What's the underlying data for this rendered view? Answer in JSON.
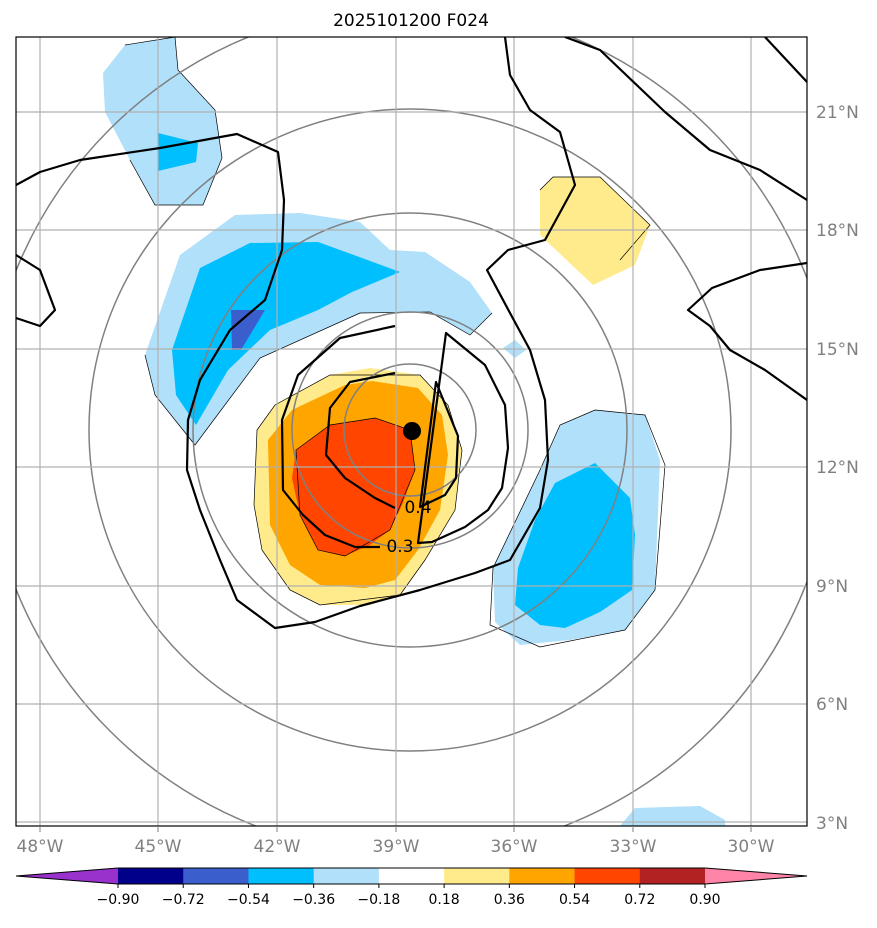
{
  "chart_data": {
    "type": "contour",
    "title": "2025101200 F024",
    "xlabel": "",
    "ylabel": "",
    "x_ticks": [
      "48°W",
      "45°W",
      "42°W",
      "39°W",
      "36°W",
      "33°W",
      "30°W"
    ],
    "y_ticks": [
      "21°N",
      "18°N",
      "15°N",
      "12°N",
      "9°N",
      "6°N",
      "3°N"
    ],
    "xlim": [
      -48.25,
      -28.65
    ],
    "ylim": [
      2.9,
      22.8
    ],
    "grid": true,
    "colorbar": {
      "orientation": "horizontal",
      "ticks": [
        "−0.90",
        "−0.72",
        "−0.54",
        "−0.36",
        "−0.18",
        "0.18",
        "0.36",
        "0.54",
        "0.72",
        "0.90"
      ],
      "colors": [
        "#9932cc",
        "#00008b",
        "#3a5fcd",
        "#00bfff",
        "#b0e0fa",
        "#ffffff",
        "#ffeb8c",
        "#ffa500",
        "#ff4500",
        "#b22222",
        "#ff85a8"
      ]
    },
    "contour_labels": [
      "0.4",
      "0.3"
    ],
    "center_marker": {
      "lon": -38.6,
      "lat": 12.9
    }
  }
}
